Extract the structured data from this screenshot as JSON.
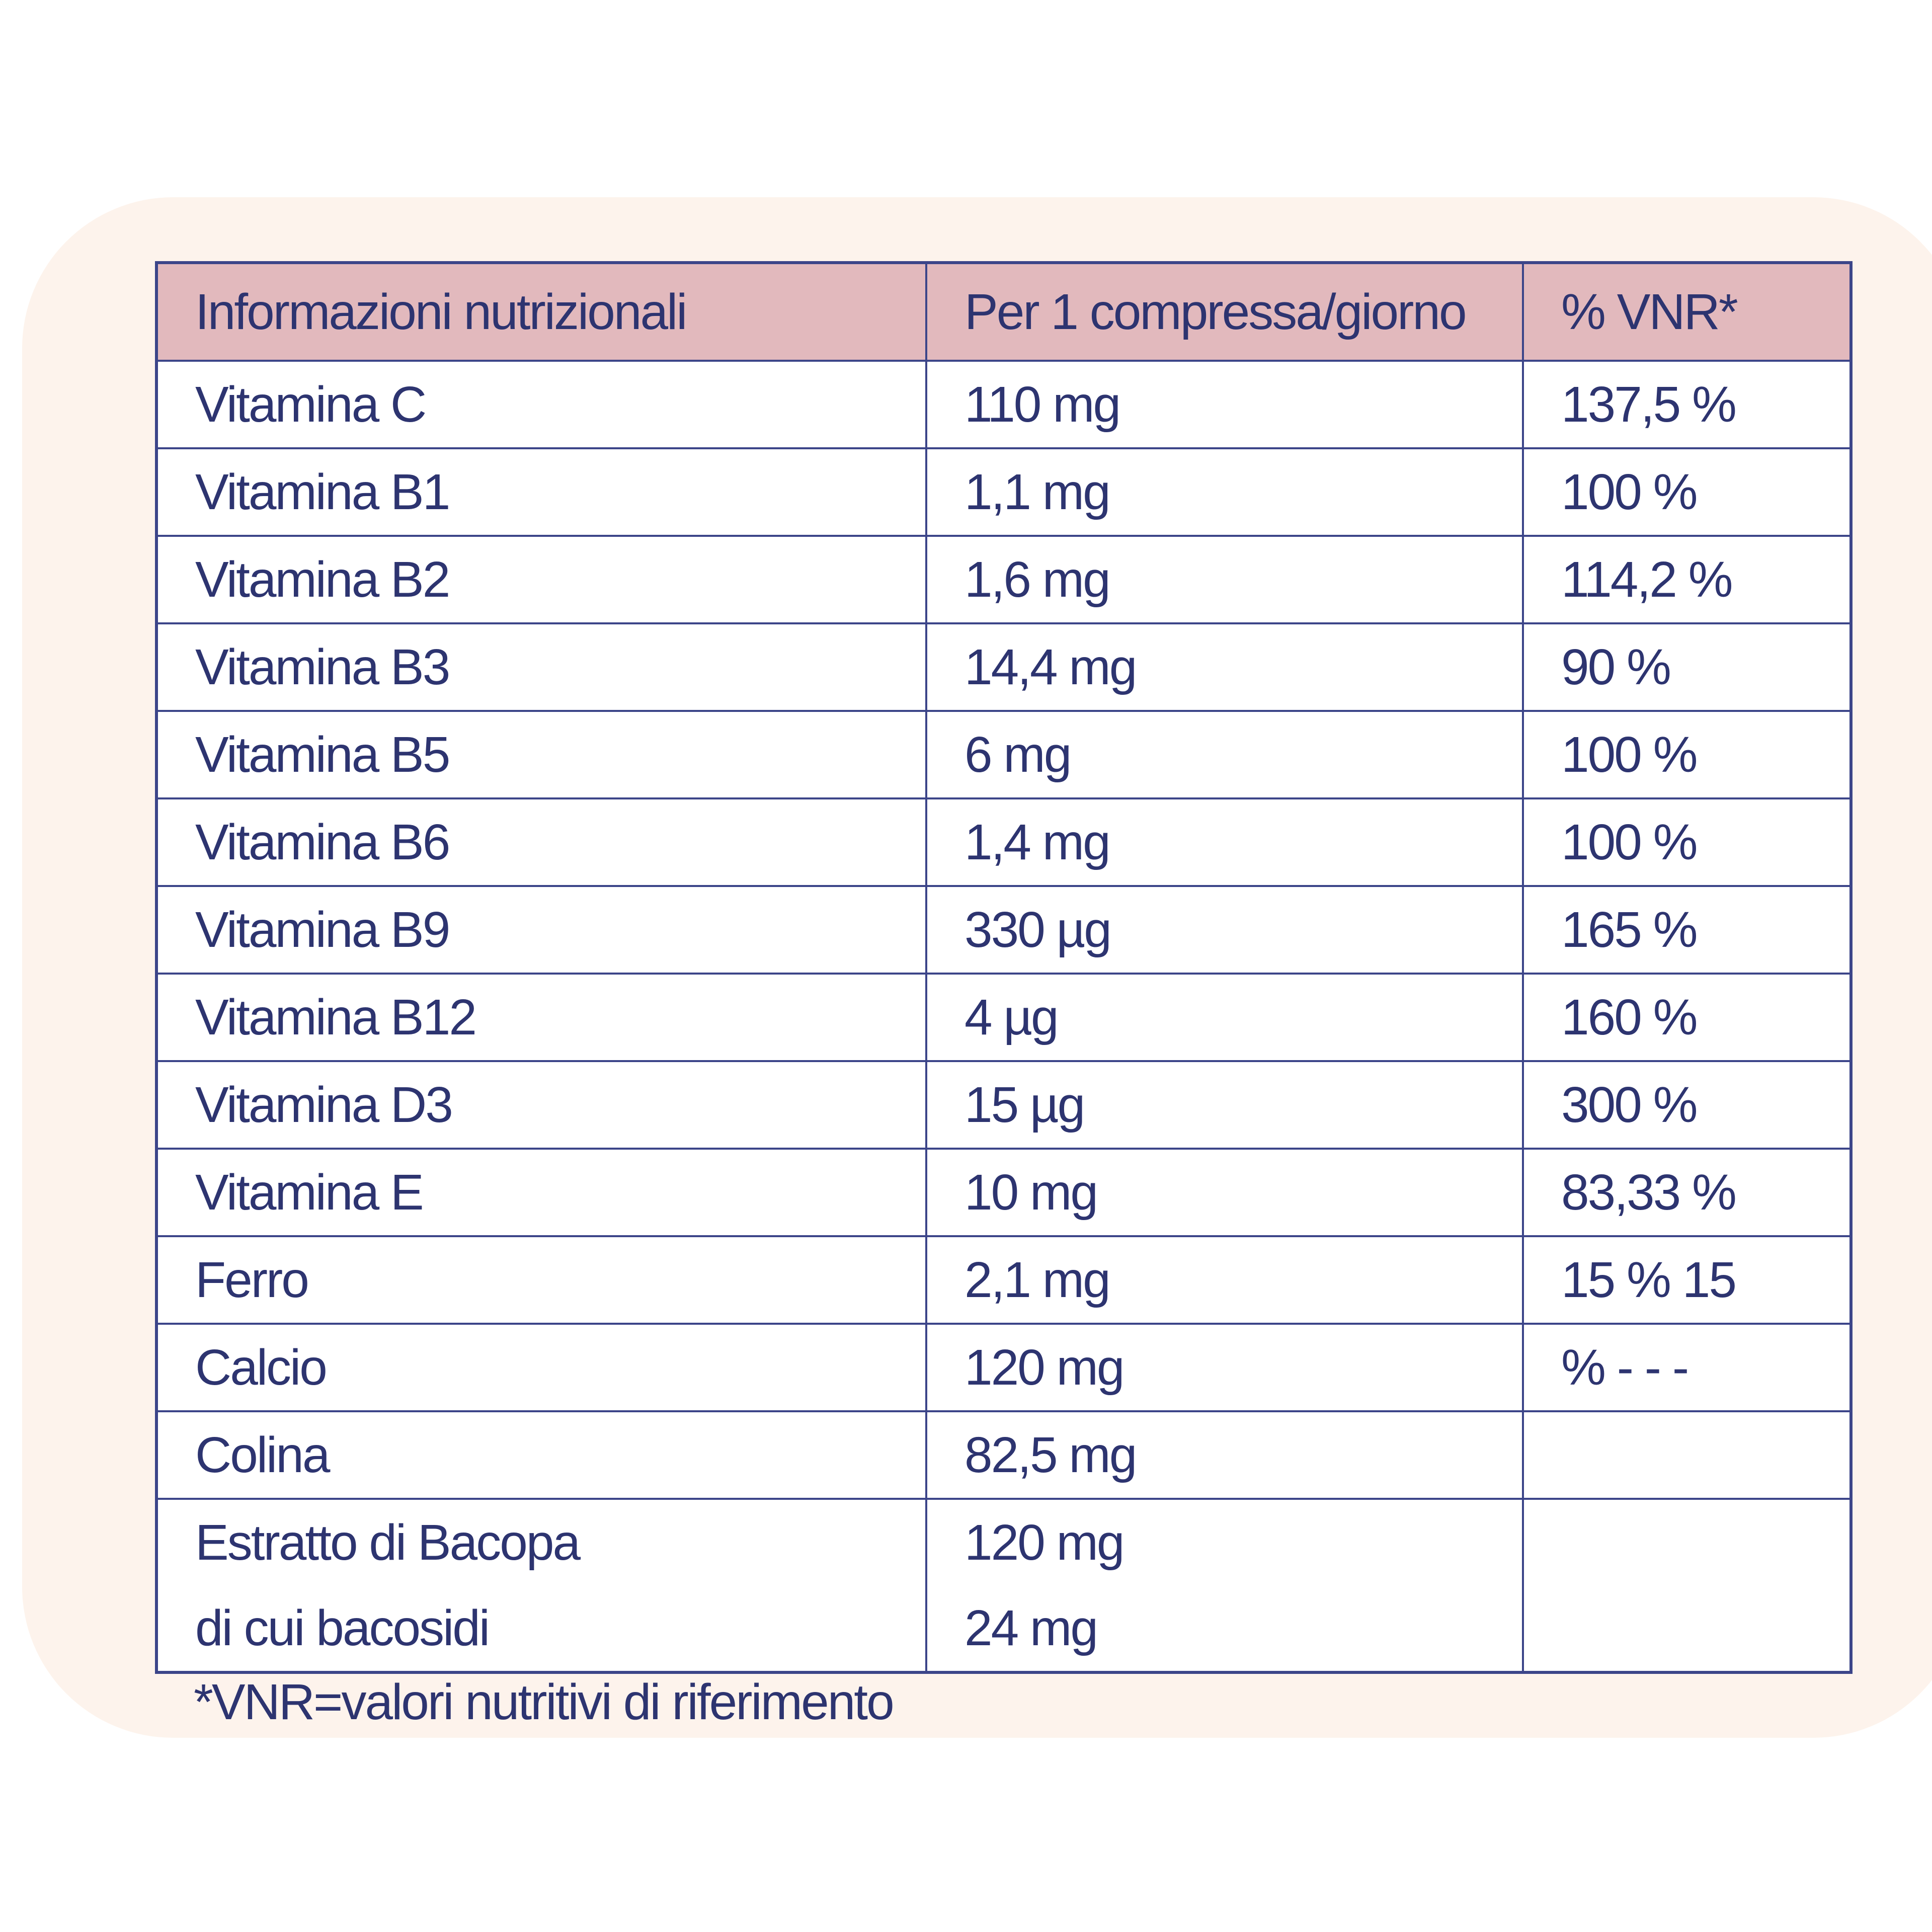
{
  "table": {
    "headers": [
      "Informazioni nutrizionali",
      "Per 1 compressa/giorno",
      "% VNR*"
    ],
    "rows": [
      {
        "nutrient": "Vitamina C",
        "amount": "110 mg",
        "vnr": "137,5 %"
      },
      {
        "nutrient": "Vitamina B1",
        "amount": "1,1 mg",
        "vnr": "100 %"
      },
      {
        "nutrient": "Vitamina B2",
        "amount": "1,6 mg",
        "vnr": "114,2 %"
      },
      {
        "nutrient": "Vitamina B3",
        "amount": "14,4 mg",
        "vnr": "90 %"
      },
      {
        "nutrient": "Vitamina B5",
        "amount": "6 mg",
        "vnr": "100 %"
      },
      {
        "nutrient": "Vitamina B6",
        "amount": "1,4 mg",
        "vnr": "100 %"
      },
      {
        "nutrient": "Vitamina B9",
        "amount": "330 µg",
        "vnr": "165 %"
      },
      {
        "nutrient": "Vitamina B12",
        "amount": "4 µg",
        "vnr": "160 %"
      },
      {
        "nutrient": "Vitamina D3",
        "amount": "15 µg",
        "vnr": "300 %"
      },
      {
        "nutrient": "Vitamina E",
        "amount": "10 mg",
        "vnr": "83,33 %"
      },
      {
        "nutrient": "Ferro",
        "amount": "2,1 mg",
        "vnr": "15 % 15"
      },
      {
        "nutrient": "Calcio",
        "amount": "120 mg",
        "vnr": "% - - -"
      },
      {
        "nutrient": "Colina",
        "amount": "82,5 mg",
        "vnr": ""
      }
    ],
    "last_row": {
      "nutrient_lines": [
        "Estratto di Bacopa",
        "di cui bacosidi"
      ],
      "amount_lines": [
        "120 mg",
        "24 mg"
      ],
      "vnr": ""
    }
  },
  "footnote": "*VNR=valori nutritivi di riferimento",
  "colors": {
    "panel_background": "#fdf3ec",
    "header_background": "#e2b9bd",
    "border": "#3c4589",
    "text": "#2d3470"
  }
}
